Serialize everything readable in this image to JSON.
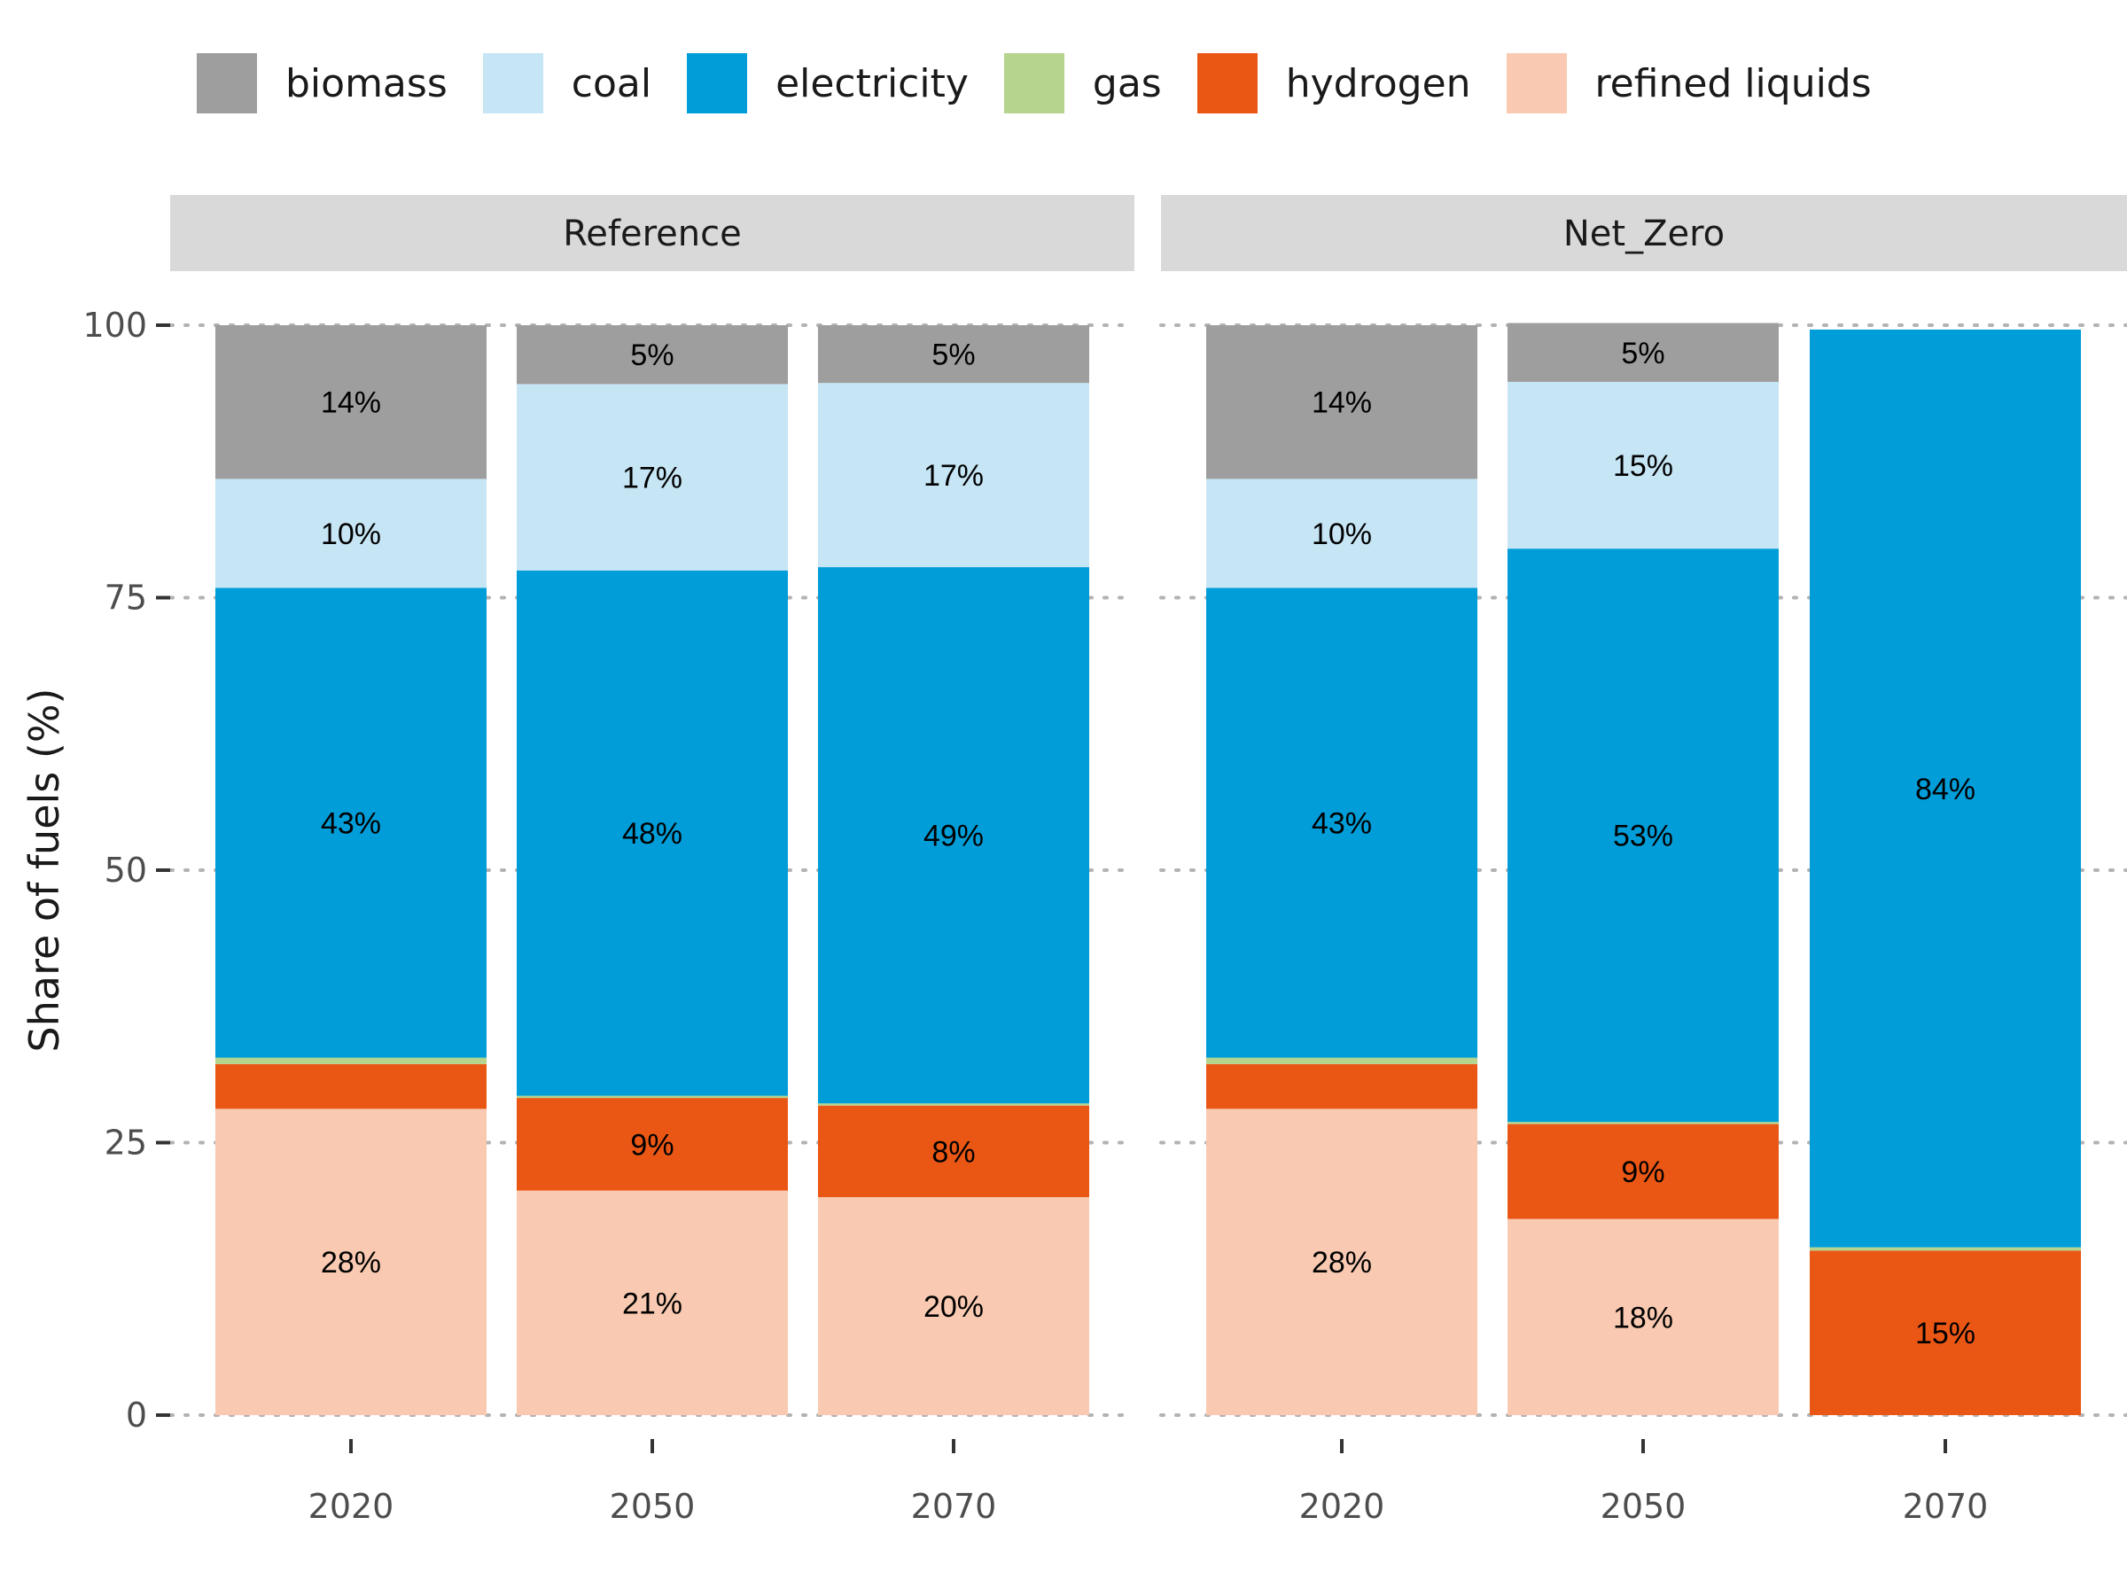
{
  "chart_data": {
    "type": "bar",
    "stacked": true,
    "ylabel": "Share of fuels (%)",
    "xlabel": "",
    "ylim": [
      0,
      100
    ],
    "yticks": [
      0,
      25,
      50,
      75,
      100
    ],
    "legend_position": "top",
    "grid": "dotted horizontal",
    "categories": [
      "2020",
      "2050",
      "2070"
    ],
    "fuels": [
      {
        "name": "biomass",
        "color": "#9e9e9e"
      },
      {
        "name": "coal",
        "color": "#c6e5f5"
      },
      {
        "name": "electricity",
        "color": "#009dd8"
      },
      {
        "name": "gas",
        "color": "#b6d48e"
      },
      {
        "name": "hydrogen",
        "color": "#ea5715"
      },
      {
        "name": "refined liquids",
        "color": "#f9cab1"
      }
    ],
    "panels": [
      {
        "name": "Reference",
        "bars": [
          {
            "x": "2020",
            "values": {
              "refined liquids": 28.1,
              "hydrogen": 4.1,
              "gas": 0.6,
              "electricity": 43.1,
              "coal": 10.0,
              "biomass": 14.1
            }
          },
          {
            "x": "2050",
            "values": {
              "refined liquids": 20.6,
              "hydrogen": 8.5,
              "gas": 0.2,
              "electricity": 48.2,
              "coal": 17.1,
              "biomass": 5.4
            }
          },
          {
            "x": "2070",
            "values": {
              "refined liquids": 20.0,
              "hydrogen": 8.4,
              "gas": 0.2,
              "electricity": 49.2,
              "coal": 16.9,
              "biomass": 5.3
            }
          }
        ]
      },
      {
        "name": "Net_Zero",
        "bars": [
          {
            "x": "2020",
            "values": {
              "refined liquids": 28.1,
              "hydrogen": 4.1,
              "gas": 0.6,
              "electricity": 43.1,
              "coal": 10.0,
              "biomass": 14.1
            }
          },
          {
            "x": "2050",
            "values": {
              "refined liquids": 18.0,
              "hydrogen": 8.7,
              "gas": 0.2,
              "electricity": 52.6,
              "coal": 15.3,
              "biomass": 5.4
            }
          },
          {
            "x": "2070",
            "values": {
              "refined liquids": 0.0,
              "hydrogen": 15.1,
              "gas": 0.3,
              "electricity": 84.2,
              "coal": 0.0,
              "biomass": 0.0
            }
          }
        ]
      }
    ],
    "label_min_value": 4.5
  }
}
